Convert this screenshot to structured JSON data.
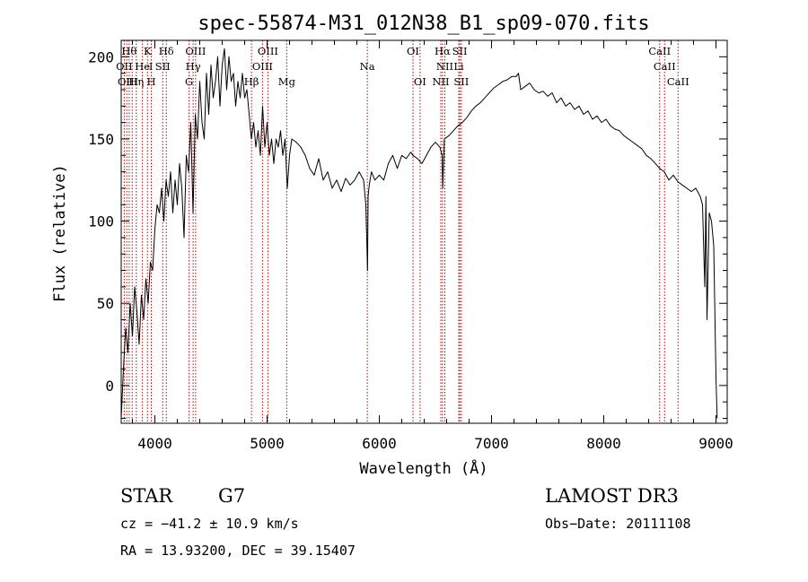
{
  "chart_data": {
    "type": "line",
    "title": "spec-55874-M31_012N38_B1_sp09-070.fits",
    "xlabel": "Wavelength (Å)",
    "ylabel": "Flux (relative)",
    "xlim": [
      3700,
      9100
    ],
    "ylim": [
      -23,
      210
    ],
    "x_ticks": [
      4000,
      5000,
      6000,
      7000,
      8000,
      9000
    ],
    "x_tick_labels": [
      "4000",
      "5000",
      "6000",
      "7000",
      "8000",
      "9000"
    ],
    "y_ticks": [
      0,
      50,
      100,
      150,
      200
    ],
    "y_tick_labels": [
      "0",
      "50",
      "100",
      "150",
      "200"
    ],
    "grid": false,
    "series": [
      {
        "color": "#000000",
        "x": [
          3700,
          3720,
          3740,
          3760,
          3780,
          3800,
          3820,
          3840,
          3860,
          3880,
          3900,
          3920,
          3940,
          3960,
          3980,
          4000,
          4020,
          4040,
          4060,
          4080,
          4100,
          4120,
          4140,
          4160,
          4180,
          4200,
          4220,
          4240,
          4260,
          4280,
          4300,
          4320,
          4340,
          4360,
          4380,
          4400,
          4420,
          4440,
          4460,
          4480,
          4500,
          4520,
          4540,
          4560,
          4580,
          4600,
          4620,
          4640,
          4660,
          4680,
          4700,
          4720,
          4740,
          4760,
          4780,
          4800,
          4820,
          4840,
          4860,
          4880,
          4900,
          4920,
          4940,
          4960,
          4980,
          5000,
          5020,
          5040,
          5060,
          5080,
          5100,
          5120,
          5140,
          5160,
          5180,
          5200,
          5220,
          5260,
          5300,
          5340,
          5380,
          5420,
          5460,
          5500,
          5540,
          5580,
          5620,
          5660,
          5700,
          5740,
          5780,
          5820,
          5860,
          5880,
          5895,
          5900,
          5910,
          5930,
          5960,
          6000,
          6040,
          6080,
          6120,
          6160,
          6200,
          6240,
          6280,
          6300,
          6340,
          6380,
          6420,
          6460,
          6500,
          6540,
          6560,
          6565,
          6580,
          6620,
          6660,
          6700,
          6740,
          6780,
          6820,
          6860,
          6900,
          6940,
          6980,
          7020,
          7060,
          7100,
          7140,
          7180,
          7220,
          7240,
          7260,
          7300,
          7340,
          7380,
          7420,
          7460,
          7500,
          7540,
          7580,
          7620,
          7660,
          7700,
          7740,
          7780,
          7820,
          7860,
          7900,
          7940,
          7980,
          8020,
          8060,
          8100,
          8140,
          8180,
          8220,
          8260,
          8300,
          8340,
          8380,
          8420,
          8460,
          8500,
          8540,
          8580,
          8620,
          8660,
          8700,
          8740,
          8780,
          8820,
          8860,
          8880,
          8900,
          8910,
          8920,
          8940,
          8960,
          8980,
          9000,
          9010
        ],
        "y": [
          -20,
          10,
          35,
          20,
          50,
          30,
          60,
          45,
          25,
          55,
          40,
          65,
          50,
          75,
          70,
          95,
          110,
          105,
          120,
          100,
          125,
          115,
          130,
          105,
          125,
          110,
          135,
          120,
          90,
          140,
          130,
          160,
          105,
          165,
          150,
          185,
          160,
          150,
          190,
          165,
          195,
          175,
          185,
          200,
          170,
          195,
          205,
          180,
          200,
          185,
          190,
          170,
          185,
          175,
          190,
          175,
          180,
          165,
          150,
          160,
          145,
          155,
          140,
          170,
          145,
          160,
          140,
          150,
          135,
          150,
          145,
          155,
          140,
          150,
          120,
          140,
          150,
          148,
          145,
          140,
          132,
          128,
          138,
          125,
          130,
          120,
          125,
          118,
          126,
          122,
          125,
          130,
          125,
          110,
          70,
          115,
          122,
          130,
          125,
          128,
          125,
          135,
          140,
          132,
          140,
          138,
          142,
          140,
          138,
          135,
          140,
          145,
          148,
          145,
          140,
          120,
          150,
          152,
          155,
          158,
          160,
          163,
          167,
          170,
          172,
          175,
          178,
          181,
          183,
          185,
          186,
          188,
          188,
          190,
          180,
          182,
          184,
          180,
          178,
          179,
          176,
          178,
          172,
          175,
          170,
          172,
          168,
          170,
          165,
          167,
          162,
          164,
          160,
          162,
          158,
          156,
          155,
          152,
          150,
          148,
          146,
          144,
          140,
          138,
          135,
          132,
          130,
          125,
          128,
          124,
          122,
          120,
          118,
          120,
          115,
          110,
          60,
          115,
          40,
          105,
          100,
          85,
          5,
          -20
        ]
      }
    ],
    "line_labels": [
      {
        "text": "Hθ",
        "x": 3771,
        "row": 1
      },
      {
        "text": "K",
        "x": 3934,
        "row": 1
      },
      {
        "text": "Hδ",
        "x": 4102,
        "row": 1
      },
      {
        "text": "OIII",
        "x": 4363,
        "row": 1
      },
      {
        "text": "OIII",
        "x": 5007,
        "row": 1
      },
      {
        "text": "OI",
        "x": 6300,
        "row": 1
      },
      {
        "text": "Hα",
        "x": 6563,
        "row": 1
      },
      {
        "text": "SII",
        "x": 6717,
        "row": 1
      },
      {
        "text": "CaII",
        "x": 8498,
        "row": 1
      },
      {
        "text": "OII",
        "x": 3727,
        "row": 2
      },
      {
        "text": "He",
        "x": 3889,
        "row": 2
      },
      {
        "text": "I",
        "x": 3965,
        "row": 2
      },
      {
        "text": "SII",
        "x": 4070,
        "row": 2
      },
      {
        "text": "Hγ",
        "x": 4341,
        "row": 2
      },
      {
        "text": "OIII",
        "x": 4959,
        "row": 2
      },
      {
        "text": "Na",
        "x": 5893,
        "row": 2
      },
      {
        "text": "NII",
        "x": 6584,
        "row": 2
      },
      {
        "text": "Li",
        "x": 6708,
        "row": 2
      },
      {
        "text": "CaII",
        "x": 8542,
        "row": 2
      },
      {
        "text": "OIII",
        "x": 3760,
        "row": 3
      },
      {
        "text": "Hη",
        "x": 3835,
        "row": 3
      },
      {
        "text": "H",
        "x": 3968,
        "row": 3
      },
      {
        "text": "G",
        "x": 4305,
        "row": 3
      },
      {
        "text": "Hβ",
        "x": 4861,
        "row": 3
      },
      {
        "text": "Mg",
        "x": 5175,
        "row": 3
      },
      {
        "text": "OI",
        "x": 6363,
        "row": 3
      },
      {
        "text": "NII",
        "x": 6548,
        "row": 3
      },
      {
        "text": "SII",
        "x": 6731,
        "row": 3
      },
      {
        "text": "CaII",
        "x": 8662,
        "row": 3
      }
    ],
    "line_markers": [
      3727,
      3750,
      3771,
      3798,
      3835,
      3889,
      3934,
      3968,
      4070,
      4102,
      4305,
      4341,
      4363,
      4861,
      4959,
      5007,
      5175,
      5893,
      6300,
      6363,
      6548,
      6563,
      6584,
      6708,
      6717,
      6731,
      8498,
      8542,
      8662
    ]
  },
  "info": {
    "object_class": "STAR",
    "subclass": "G7",
    "survey": "LAMOST DR3",
    "cz": "cz = −41.2 ± 10.9 km/s",
    "obs_date": "Obs−Date: 20111108",
    "radec": "RA =  13.93200, DEC =  39.15407"
  },
  "colors": {
    "spectrum": "#000000",
    "line_markers": "#c00000",
    "axes": "#000000",
    "background": "#ffffff"
  }
}
